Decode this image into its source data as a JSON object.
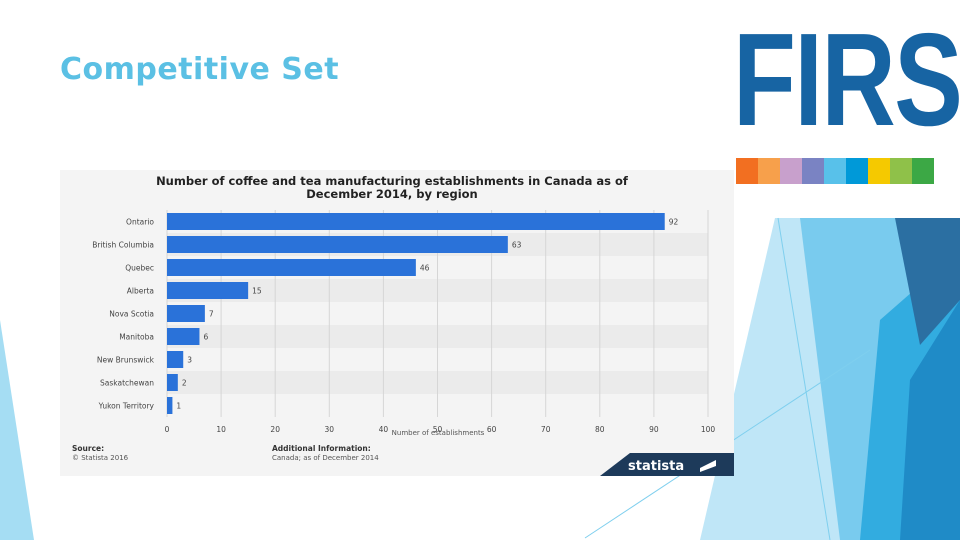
{
  "slide": {
    "title": "Competitive Set"
  },
  "logo": {
    "text": "FIRSt",
    "color": "#1764a3",
    "strip_colors": [
      "#f26f21",
      "#f7a04b",
      "#c8a0cc",
      "#7a83c3",
      "#58c1ea",
      "#0099d8",
      "#f5c900",
      "#8fc149",
      "#3ca845"
    ]
  },
  "chart_data": {
    "type": "bar",
    "orientation": "horizontal",
    "title": "Number of coffee and tea manufacturing establishments in Canada as of December 2014, by region",
    "title_line1": "Number of coffee and tea manufacturing establishments in Canada as of",
    "title_line2": "December 2014, by region",
    "categories": [
      "Ontario",
      "British Columbia",
      "Quebec",
      "Alberta",
      "Nova Scotia",
      "Manitoba",
      "New Brunswick",
      "Saskatchewan",
      "Yukon Territory"
    ],
    "values": [
      92,
      63,
      46,
      15,
      7,
      6,
      3,
      2,
      1
    ],
    "xlabel": "Number of establishments",
    "xlim": [
      0,
      100
    ],
    "xticks": [
      0,
      10,
      20,
      30,
      40,
      50,
      60,
      70,
      80,
      90,
      100
    ],
    "bar_color": "#2a72d9",
    "grid": true,
    "footer": {
      "source_label": "Source:",
      "source_value": "© Statista 2016",
      "info_label": "Additional Information:",
      "info_value": "Canada; as of December 2014"
    },
    "brand": "statista"
  }
}
